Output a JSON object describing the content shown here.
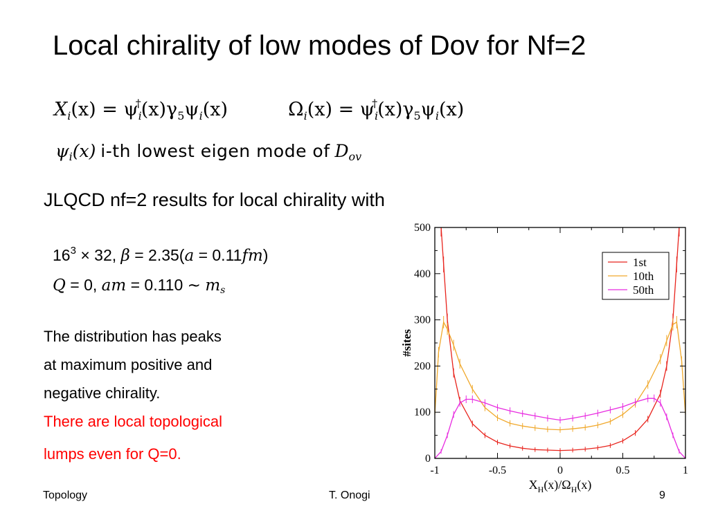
{
  "slide": {
    "title": "Local chirality of low modes of Dov for Nf=2",
    "equation": {
      "X_lhs": "X",
      "X_sub": "i",
      "X_rhs_a": "(x) = ψ",
      "dagger": "†",
      "X_rhs_b": "(x)γ",
      "five": "5",
      "X_rhs_c": "ψ",
      "X_rhs_d": "(x)",
      "O_lhs": "Ω"
    },
    "mode_def": {
      "psi": "ψ",
      "sub_i": "i",
      "arg": "(x)",
      "text": "i-th lowest eigen mode of",
      "D": "D",
      "D_sub": "ov"
    },
    "subheading": "JLQCD nf=2 results for local chirality with",
    "params": {
      "lattice_base": "16",
      "lattice_exp": "3",
      "lattice_rest": "× 32,",
      "beta": "β",
      "beta_val": "= 2.35(",
      "a": "a",
      "a_val": "= 0.11",
      "fm": "fm",
      "close": ")",
      "Q": "Q",
      "Q_val": "= 0,",
      "am": "am",
      "am_val": "= 0.110 ∼",
      "m": "m",
      "m_sub": "s"
    },
    "description": [
      "The distribution has peaks",
      "at maximum positive and",
      "negative chirality."
    ],
    "highlight": [
      "There are local topological",
      "lumps  even for Q=0."
    ],
    "footer": {
      "left": "Topology",
      "center": "T. Onogi",
      "right": "9"
    }
  },
  "chart_data": {
    "type": "line",
    "xlabel": "X_H(x)/Ω_H(x)",
    "ylabel": "#sites",
    "xlim": [
      -1,
      1
    ],
    "ylim": [
      0,
      500
    ],
    "xticks": [
      -1,
      -0.5,
      0,
      0.5,
      1
    ],
    "yticks": [
      0,
      100,
      200,
      300,
      400,
      500
    ],
    "legend_position": "top-right",
    "grid": false,
    "series": [
      {
        "name": "1st",
        "color": "#e8231c",
        "x": [
          -0.95,
          -0.93,
          -0.9,
          -0.85,
          -0.8,
          -0.7,
          -0.6,
          -0.5,
          -0.4,
          -0.3,
          -0.2,
          -0.1,
          0,
          0.1,
          0.2,
          0.3,
          0.4,
          0.5,
          0.6,
          0.7,
          0.8,
          0.85,
          0.9,
          0.93,
          0.95
        ],
        "y": [
          500,
          420,
          300,
          185,
          125,
          75,
          50,
          35,
          27,
          22,
          19,
          18,
          17,
          18,
          20,
          23,
          28,
          38,
          55,
          85,
          140,
          200,
          300,
          420,
          500
        ]
      },
      {
        "name": "10th",
        "color": "#f0a82b",
        "x": [
          -1,
          -0.97,
          -0.93,
          -0.9,
          -0.85,
          -0.8,
          -0.7,
          -0.6,
          -0.5,
          -0.4,
          -0.3,
          -0.2,
          -0.1,
          0,
          0.1,
          0.2,
          0.3,
          0.4,
          0.5,
          0.6,
          0.7,
          0.8,
          0.85,
          0.9,
          0.93,
          0.97,
          1
        ],
        "y": [
          95,
          230,
          295,
          280,
          245,
          205,
          150,
          110,
          88,
          76,
          70,
          66,
          63,
          62,
          64,
          67,
          72,
          80,
          95,
          118,
          160,
          215,
          255,
          290,
          295,
          210,
          95
        ]
      },
      {
        "name": "50th",
        "color": "#e82be0",
        "x": [
          -1,
          -0.95,
          -0.9,
          -0.85,
          -0.8,
          -0.75,
          -0.7,
          -0.6,
          -0.5,
          -0.4,
          -0.3,
          -0.2,
          -0.1,
          0,
          0.1,
          0.2,
          0.3,
          0.4,
          0.5,
          0.6,
          0.7,
          0.75,
          0.8,
          0.85,
          0.9,
          0.95,
          1
        ],
        "y": [
          0,
          15,
          50,
          95,
          120,
          128,
          128,
          120,
          110,
          103,
          97,
          92,
          87,
          83,
          87,
          92,
          98,
          105,
          112,
          122,
          130,
          130,
          120,
          90,
          50,
          15,
          0
        ]
      }
    ]
  }
}
